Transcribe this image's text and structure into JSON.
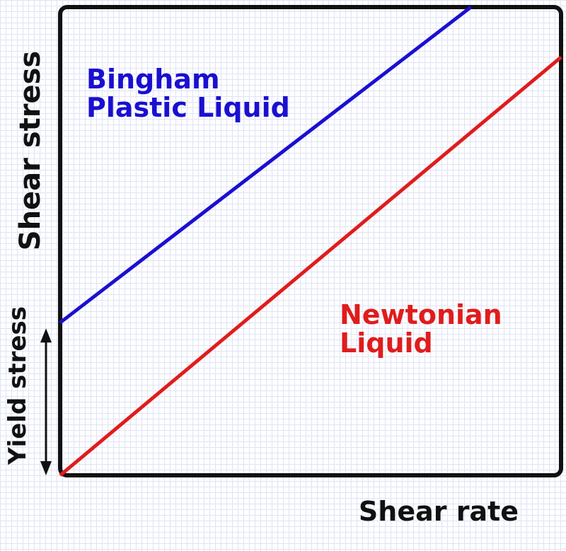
{
  "chart_data": {
    "type": "line",
    "title": "",
    "xlabel": "Shear rate",
    "ylabel": "Shear stress",
    "xlim": [
      0,
      1
    ],
    "ylim": [
      0,
      1
    ],
    "grid": false,
    "series": [
      {
        "name": "Bingham\nPlastic Liquid",
        "color": "#1a0fd0",
        "x": [
          0,
          0.82
        ],
        "y": [
          0.326,
          1.0
        ]
      },
      {
        "name": "Newtonian\nLiquid",
        "color": "#e01c1c",
        "x": [
          0,
          1.0
        ],
        "y": [
          0,
          0.893
        ]
      }
    ],
    "annotations": [
      {
        "text": "Yield stress",
        "type": "double-arrow",
        "y_from": 0,
        "y_to": 0.326
      }
    ]
  }
}
